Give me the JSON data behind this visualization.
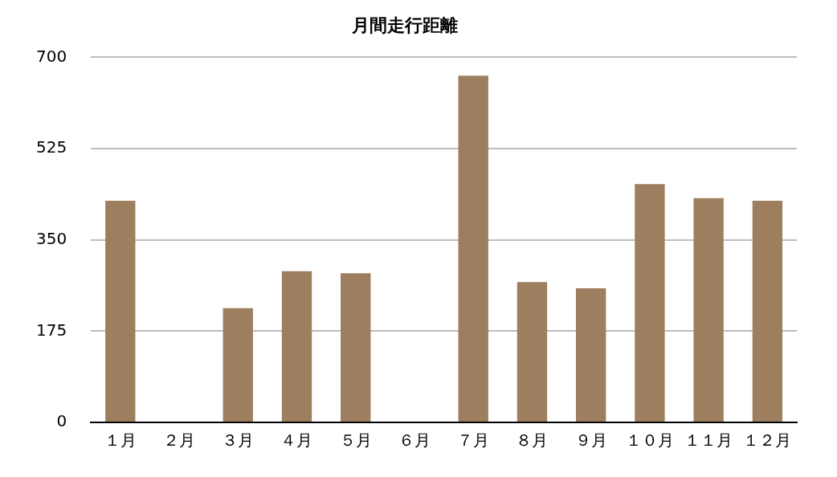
{
  "chart_data": {
    "type": "bar",
    "title": "月間走行距離",
    "categories": [
      "１月",
      "２月",
      "３月",
      "４月",
      "５月",
      "６月",
      "７月",
      "８月",
      "９月",
      "１０月",
      "１１月",
      "１２月"
    ],
    "values": [
      425,
      0,
      219,
      290,
      286,
      0,
      665,
      269,
      257,
      457,
      430,
      425
    ],
    "color": "#9d7f5f",
    "ylim": [
      0,
      700
    ],
    "yticks": [
      0,
      175,
      350,
      525,
      700
    ],
    "grid": "y",
    "legend": false
  }
}
